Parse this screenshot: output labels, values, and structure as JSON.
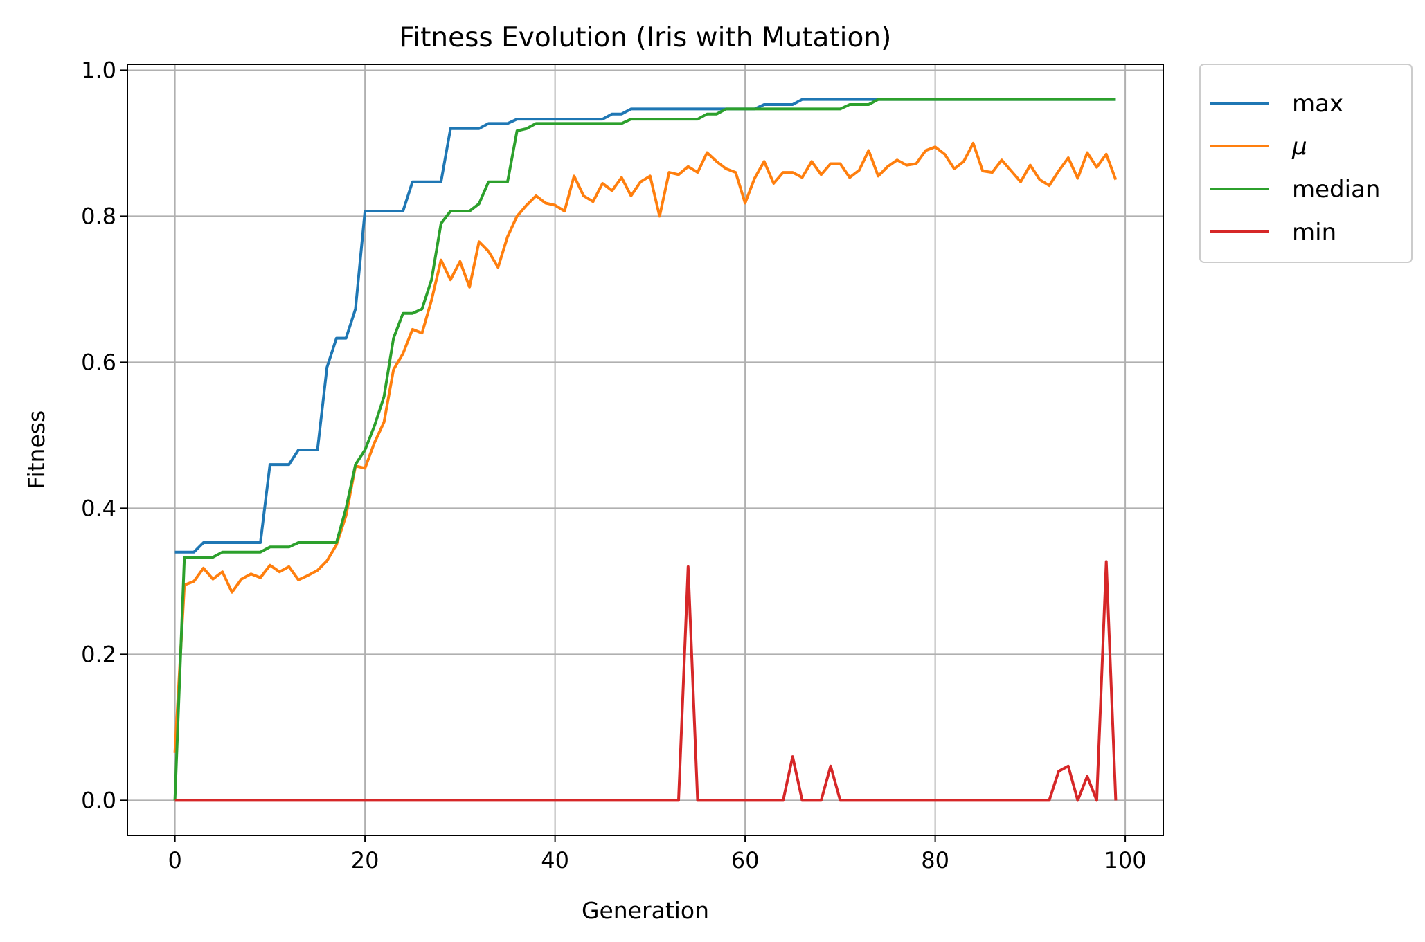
{
  "chart_data": {
    "type": "line",
    "title": "Fitness Evolution (Iris with Mutation)",
    "xlabel": "Generation",
    "ylabel": "Fitness",
    "xlim": [
      -5,
      104
    ],
    "ylim": [
      -0.048,
      1.008
    ],
    "xticks": [
      "0",
      "20",
      "40",
      "60",
      "80",
      "100"
    ],
    "yticks": [
      "0.0",
      "0.2",
      "0.4",
      "0.6",
      "0.8",
      "1.0"
    ],
    "grid": true,
    "legend_position": "outside-top-right",
    "x": [
      0,
      1,
      2,
      3,
      4,
      5,
      6,
      7,
      8,
      9,
      10,
      11,
      12,
      13,
      14,
      15,
      16,
      17,
      18,
      19,
      20,
      21,
      22,
      23,
      24,
      25,
      26,
      27,
      28,
      29,
      30,
      31,
      32,
      33,
      34,
      35,
      36,
      37,
      38,
      39,
      40,
      41,
      42,
      43,
      44,
      45,
      46,
      47,
      48,
      49,
      50,
      51,
      52,
      53,
      54,
      55,
      56,
      57,
      58,
      59,
      60,
      61,
      62,
      63,
      64,
      65,
      66,
      67,
      68,
      69,
      70,
      71,
      72,
      73,
      74,
      75,
      76,
      77,
      78,
      79,
      80,
      81,
      82,
      83,
      84,
      85,
      86,
      87,
      88,
      89,
      90,
      91,
      92,
      93,
      94,
      95,
      96,
      97,
      98,
      99
    ],
    "series": [
      {
        "name": "max",
        "color": "#1f77b4",
        "values": [
          0.34,
          0.34,
          0.34,
          0.353,
          0.353,
          0.353,
          0.353,
          0.353,
          0.353,
          0.353,
          0.46,
          0.46,
          0.46,
          0.48,
          0.48,
          0.48,
          0.593,
          0.633,
          0.633,
          0.673,
          0.807,
          0.807,
          0.807,
          0.807,
          0.807,
          0.847,
          0.847,
          0.847,
          0.847,
          0.92,
          0.92,
          0.92,
          0.92,
          0.927,
          0.927,
          0.927,
          0.933,
          0.933,
          0.933,
          0.933,
          0.933,
          0.933,
          0.933,
          0.933,
          0.933,
          0.933,
          0.94,
          0.94,
          0.947,
          0.947,
          0.947,
          0.947,
          0.947,
          0.947,
          0.947,
          0.947,
          0.947,
          0.947,
          0.947,
          0.947,
          0.947,
          0.947,
          0.953,
          0.953,
          0.953,
          0.953,
          0.96,
          0.96,
          0.96,
          0.96,
          0.96,
          0.96,
          0.96,
          0.96,
          0.96,
          0.96,
          0.96,
          0.96,
          0.96,
          0.96,
          0.96,
          0.96,
          0.96,
          0.96,
          0.96,
          0.96,
          0.96,
          0.96,
          0.96,
          0.96,
          0.96,
          0.96,
          0.96,
          0.96,
          0.96,
          0.96,
          0.96,
          0.96,
          0.96,
          0.96
        ]
      },
      {
        "name": "μ",
        "color": "#ff7f0e",
        "values": [
          0.065,
          0.295,
          0.3,
          0.318,
          0.303,
          0.313,
          0.285,
          0.303,
          0.31,
          0.305,
          0.322,
          0.313,
          0.32,
          0.302,
          0.308,
          0.315,
          0.328,
          0.35,
          0.39,
          0.458,
          0.455,
          0.49,
          0.518,
          0.59,
          0.612,
          0.645,
          0.64,
          0.685,
          0.74,
          0.713,
          0.738,
          0.703,
          0.765,
          0.752,
          0.73,
          0.772,
          0.8,
          0.815,
          0.828,
          0.818,
          0.815,
          0.807,
          0.855,
          0.828,
          0.82,
          0.845,
          0.835,
          0.853,
          0.828,
          0.847,
          0.855,
          0.8,
          0.86,
          0.857,
          0.868,
          0.86,
          0.887,
          0.875,
          0.865,
          0.86,
          0.818,
          0.852,
          0.875,
          0.845,
          0.86,
          0.86,
          0.853,
          0.875,
          0.857,
          0.872,
          0.872,
          0.853,
          0.863,
          0.89,
          0.855,
          0.868,
          0.877,
          0.87,
          0.872,
          0.89,
          0.895,
          0.885,
          0.865,
          0.875,
          0.9,
          0.862,
          0.86,
          0.877,
          0.862,
          0.847,
          0.87,
          0.85,
          0.842,
          0.862,
          0.88,
          0.852,
          0.887,
          0.867,
          0.885,
          0.85
        ]
      },
      {
        "name": "median",
        "color": "#2ca02c",
        "values": [
          0.0,
          0.333,
          0.333,
          0.333,
          0.333,
          0.34,
          0.34,
          0.34,
          0.34,
          0.34,
          0.347,
          0.347,
          0.347,
          0.353,
          0.353,
          0.353,
          0.353,
          0.353,
          0.4,
          0.46,
          0.48,
          0.513,
          0.553,
          0.633,
          0.667,
          0.667,
          0.673,
          0.713,
          0.79,
          0.807,
          0.807,
          0.807,
          0.817,
          0.847,
          0.847,
          0.847,
          0.917,
          0.92,
          0.927,
          0.927,
          0.927,
          0.927,
          0.927,
          0.927,
          0.927,
          0.927,
          0.927,
          0.927,
          0.933,
          0.933,
          0.933,
          0.933,
          0.933,
          0.933,
          0.933,
          0.933,
          0.94,
          0.94,
          0.947,
          0.947,
          0.947,
          0.947,
          0.947,
          0.947,
          0.947,
          0.947,
          0.947,
          0.947,
          0.947,
          0.947,
          0.947,
          0.953,
          0.953,
          0.953,
          0.96,
          0.96,
          0.96,
          0.96,
          0.96,
          0.96,
          0.96,
          0.96,
          0.96,
          0.96,
          0.96,
          0.96,
          0.96,
          0.96,
          0.96,
          0.96,
          0.96,
          0.96,
          0.96,
          0.96,
          0.96,
          0.96,
          0.96,
          0.96,
          0.96,
          0.96
        ]
      },
      {
        "name": "min",
        "color": "#d62728",
        "values": [
          0,
          0,
          0,
          0,
          0,
          0,
          0,
          0,
          0,
          0,
          0,
          0,
          0,
          0,
          0,
          0,
          0,
          0,
          0,
          0,
          0,
          0,
          0,
          0,
          0,
          0,
          0,
          0,
          0,
          0,
          0,
          0,
          0,
          0,
          0,
          0,
          0,
          0,
          0,
          0,
          0,
          0,
          0,
          0,
          0,
          0,
          0,
          0,
          0,
          0,
          0,
          0,
          0,
          0,
          0.32,
          0,
          0,
          0,
          0,
          0,
          0,
          0,
          0,
          0,
          0,
          0.06,
          0,
          0,
          0,
          0.047,
          0,
          0,
          0,
          0,
          0,
          0,
          0,
          0,
          0,
          0,
          0,
          0,
          0,
          0,
          0,
          0,
          0,
          0,
          0,
          0,
          0,
          0,
          0,
          0.04,
          0.047,
          0,
          0.033,
          0,
          0.327,
          0
        ]
      }
    ]
  }
}
